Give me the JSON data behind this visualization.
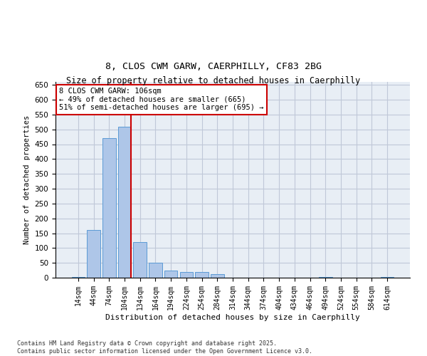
{
  "title_line1": "8, CLOS CWM GARW, CAERPHILLY, CF83 2BG",
  "title_line2": "Size of property relative to detached houses in Caerphilly",
  "xlabel": "Distribution of detached houses by size in Caerphilly",
  "ylabel": "Number of detached properties",
  "categories": [
    "14sqm",
    "44sqm",
    "74sqm",
    "104sqm",
    "134sqm",
    "164sqm",
    "194sqm",
    "224sqm",
    "254sqm",
    "284sqm",
    "314sqm",
    "344sqm",
    "374sqm",
    "404sqm",
    "434sqm",
    "464sqm",
    "494sqm",
    "524sqm",
    "554sqm",
    "584sqm",
    "614sqm"
  ],
  "values": [
    2,
    160,
    470,
    510,
    120,
    50,
    25,
    20,
    20,
    12,
    0,
    0,
    0,
    0,
    0,
    0,
    2,
    0,
    0,
    0,
    2
  ],
  "bar_color": "#aec6e8",
  "bar_edge_color": "#5b9bd5",
  "grid_color": "#c0c8d8",
  "background_color": "#e8eef5",
  "vline_x_index": 3,
  "vline_color": "#cc0000",
  "annotation_text": "8 CLOS CWM GARW: 106sqm\n← 49% of detached houses are smaller (665)\n51% of semi-detached houses are larger (695) →",
  "annotation_box_color": "#cc0000",
  "ylim": [
    0,
    660
  ],
  "yticks": [
    0,
    50,
    100,
    150,
    200,
    250,
    300,
    350,
    400,
    450,
    500,
    550,
    600,
    650
  ],
  "footer_line1": "Contains HM Land Registry data © Crown copyright and database right 2025.",
  "footer_line2": "Contains public sector information licensed under the Open Government Licence v3.0."
}
